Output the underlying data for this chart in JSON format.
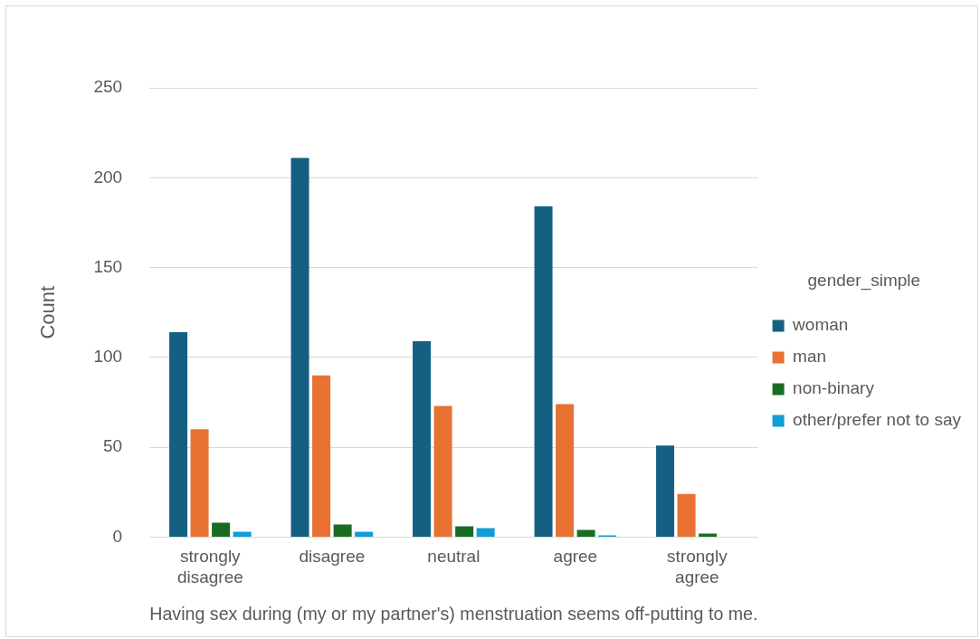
{
  "chart_data": {
    "type": "bar",
    "xlabel": "Having sex during (my or my partner's) menstruation seems off-putting to me.",
    "ylabel": "Count",
    "legend_title": "gender_simple",
    "categories": [
      "strongly disagree",
      "disagree",
      "neutral",
      "agree",
      "strongly agree"
    ],
    "series": [
      {
        "name": "woman",
        "color": "#156082",
        "values": [
          114,
          211,
          109,
          184,
          51
        ]
      },
      {
        "name": "man",
        "color": "#e97132",
        "values": [
          60,
          90,
          73,
          74,
          24
        ]
      },
      {
        "name": "non-binary",
        "color": "#196b24",
        "values": [
          8,
          7,
          6,
          4,
          2
        ]
      },
      {
        "name": "other/prefer not to say",
        "color": "#0f9ed5",
        "values": [
          3,
          3,
          5,
          1,
          0
        ]
      }
    ],
    "ylim": [
      0,
      250
    ],
    "yticks": [
      0,
      50,
      100,
      150,
      200,
      250
    ],
    "grid": "y",
    "legend": "right"
  }
}
